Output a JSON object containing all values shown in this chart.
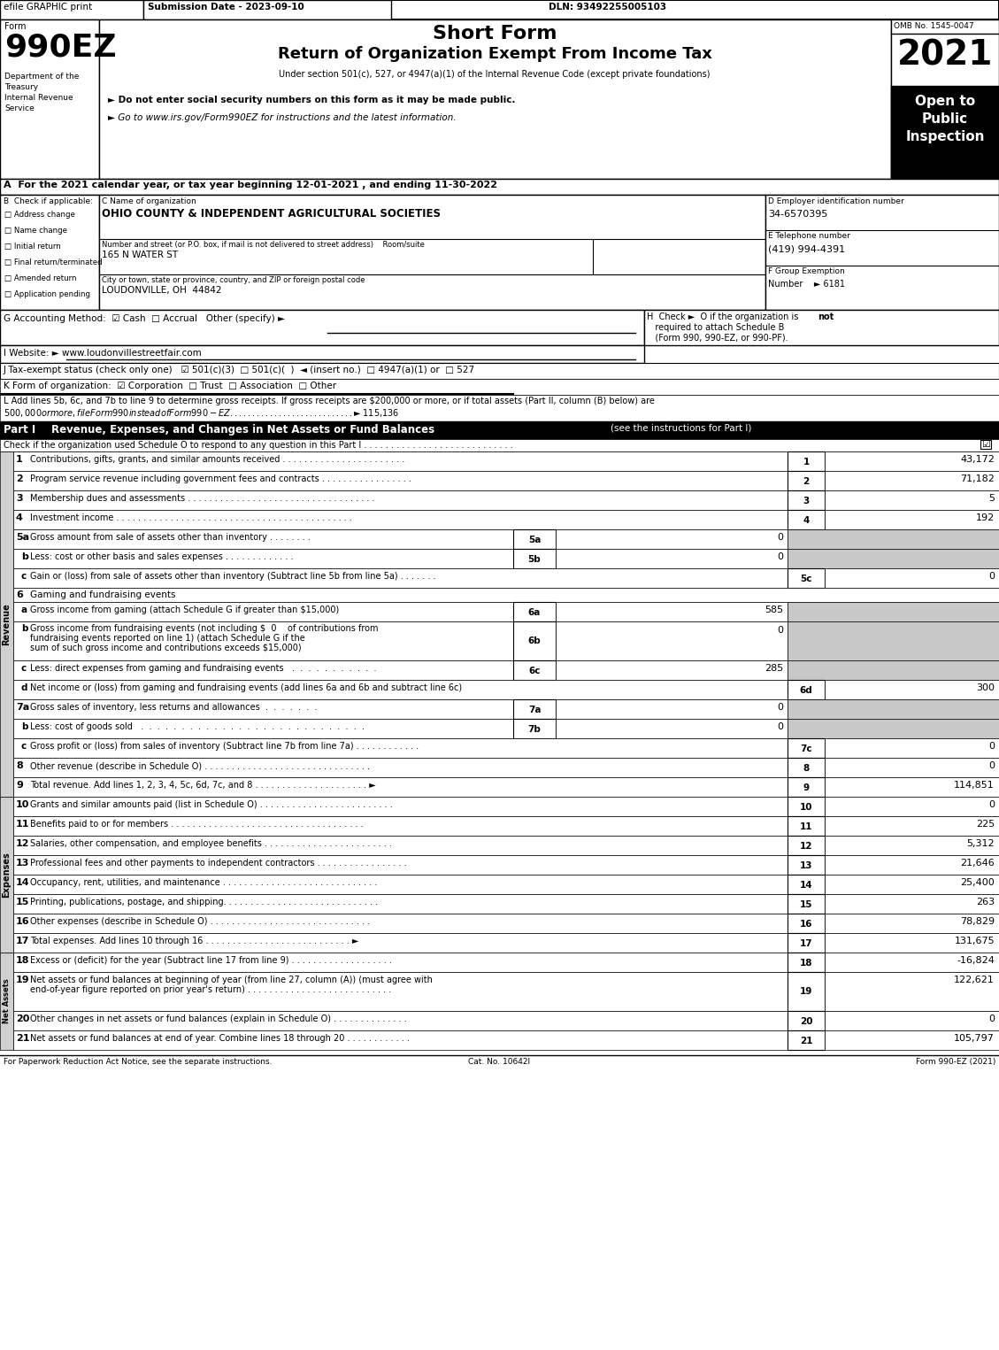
{
  "header_efile": "efile GRAPHIC print",
  "header_date": "Submission Date - 2023-09-10",
  "header_dln": "DLN: 93492255005103",
  "form_label": "Form",
  "form_number": "990EZ",
  "short_form": "Short Form",
  "main_title": "Return of Organization Exempt From Income Tax",
  "subtitle": "Under section 501(c), 527, or 4947(a)(1) of the Internal Revenue Code (except private foundations)",
  "bullet1": "► Do not enter social security numbers on this form as it may be made public.",
  "bullet2": "► Go to www.irs.gov/Form990EZ for instructions and the latest information.",
  "omb": "OMB No. 1545-0047",
  "year": "2021",
  "dept": [
    "Department of the",
    "Treasury",
    "Internal Revenue",
    "Service"
  ],
  "line_A": "A  For the 2021 calendar year, or tax year beginning 12-01-2021 , and ending 11-30-2022",
  "checkboxes_B": [
    "Address change",
    "Name change",
    "Initial return",
    "Final return/terminated",
    "Amended return",
    "Application pending"
  ],
  "org_name": "OHIO COUNTY & INDEPENDENT AGRICULTURAL SOCIETIES",
  "street": "165 N WATER ST",
  "city": "LOUDONVILLE, OH  44842",
  "ein": "34-6570395",
  "phone": "(419) 994-4391",
  "group_num": "► 6181",
  "line_G": "G Accounting Method:  ☑ Cash  □ Accrual   Other (specify) ►",
  "line_I": "I Website: ► www.loudonvillestreetfair.com",
  "line_J": "J Tax-exempt status (check only one)   ☑ 501(c)(3)  □ 501(c)(  )  ◄ (insert no.)  □ 4947(a)(1) or  □ 527",
  "line_K": "K Form of organization:  ☑ Corporation  □ Trust  □ Association  □ Other",
  "line_L1": "L Add lines 5b, 6c, and 7b to line 9 to determine gross receipts. If gross receipts are $200,000 or more, or if total assets (Part II, column (B) below) are",
  "line_L2": "$500,000 or more, file Form 990 instead of Form 990-EZ . . . . . . . . . . . . . . . . . . . . . . . . . . . . ► $ 115,136",
  "part1_header": "Revenue, Expenses, and Changes in Net Assets or Fund Balances",
  "part1_sub": "(see the instructions for Part I)",
  "part1_check_line": "Check if the organization used Schedule O to respond to any question in this Part I . . . . . . . . . . . . . . . . . . . . . . . . . . . .",
  "revenue_rows": [
    {
      "n": "1",
      "desc": "Contributions, gifts, grants, and similar amounts received . . . . . . . . . . . . . . . . . . . . . . .",
      "box": "1",
      "val": "43,172"
    },
    {
      "n": "2",
      "desc": "Program service revenue including government fees and contracts . . . . . . . . . . . . . . . . .",
      "box": "2",
      "val": "71,182"
    },
    {
      "n": "3",
      "desc": "Membership dues and assessments . . . . . . . . . . . . . . . . . . . . . . . . . . . . . . . . . . .",
      "box": "3",
      "val": "5"
    },
    {
      "n": "4",
      "desc": "Investment income . . . . . . . . . . . . . . . . . . . . . . . . . . . . . . . . . . . . . . . . . . . .",
      "box": "4",
      "val": "192"
    }
  ],
  "line5a_desc": "Gross amount from sale of assets other than inventory . . . . . . . .",
  "line5a_box": "5a",
  "line5a_val": "0",
  "line5b_desc": "Less: cost or other basis and sales expenses . . . . . . . . . . . . .",
  "line5b_box": "5b",
  "line5b_val": "0",
  "line5c_desc": "Gain or (loss) from sale of assets other than inventory (Subtract line 5b from line 5a) . . . . . . .",
  "line5c_box": "5c",
  "line5c_val": "0",
  "line6_desc": "Gaming and fundraising events",
  "line6a_desc": "Gross income from gaming (attach Schedule G if greater than $15,000)",
  "line6a_box": "6a",
  "line6a_val": "585",
  "line6b_desc1": "Gross income from fundraising events (not including $  0    of contributions from",
  "line6b_desc2": "fundraising events reported on line 1) (attach Schedule G if the",
  "line6b_desc3": "sum of such gross income and contributions exceeds $15,000)",
  "line6b_box": "6b",
  "line6b_val": "0",
  "line6c_desc": "Less: direct expenses from gaming and fundraising events   .  .  .  .  .  .  .  .  .  .  .",
  "line6c_box": "6c",
  "line6c_val": "285",
  "line6d_desc": "Net income or (loss) from gaming and fundraising events (add lines 6a and 6b and subtract line 6c)",
  "line6d_box": "6d",
  "line6d_val": "300",
  "line7a_desc": "Gross sales of inventory, less returns and allowances  .  .  .  .  .  .  .",
  "line7a_box": "7a",
  "line7a_val": "0",
  "line7b_desc": "Less: cost of goods sold   .  .  .  .  .  .  .  .  .  .  .  .  .  .  .  .  .  .  .  .  .  .  .  .  .  .  .  .",
  "line7b_box": "7b",
  "line7b_val": "0",
  "line7c_desc": "Gross profit or (loss) from sales of inventory (Subtract line 7b from line 7a) . . . . . . . . . . . .",
  "line7c_box": "7c",
  "line7c_val": "0",
  "line8_desc": "Other revenue (describe in Schedule O) . . . . . . . . . . . . . . . . . . . . . . . . . . . . . . .",
  "line8_box": "8",
  "line8_val": "0",
  "line9_desc": "Total revenue. Add lines 1, 2, 3, 4, 5c, 6d, 7c, and 8 . . . . . . . . . . . . . . . . . . . . . ►",
  "line9_box": "9",
  "line9_val": "114,851",
  "expense_rows": [
    {
      "n": "10",
      "desc": "Grants and similar amounts paid (list in Schedule O) . . . . . . . . . . . . . . . . . . . . . . . . .",
      "box": "10",
      "val": "0"
    },
    {
      "n": "11",
      "desc": "Benefits paid to or for members . . . . . . . . . . . . . . . . . . . . . . . . . . . . . . . . . . . .",
      "box": "11",
      "val": "225"
    },
    {
      "n": "12",
      "desc": "Salaries, other compensation, and employee benefits . . . . . . . . . . . . . . . . . . . . . . . .",
      "box": "12",
      "val": "5,312"
    },
    {
      "n": "13",
      "desc": "Professional fees and other payments to independent contractors . . . . . . . . . . . . . . . . .",
      "box": "13",
      "val": "21,646"
    },
    {
      "n": "14",
      "desc": "Occupancy, rent, utilities, and maintenance . . . . . . . . . . . . . . . . . . . . . . . . . . . . .",
      "box": "14",
      "val": "25,400"
    },
    {
      "n": "15",
      "desc": "Printing, publications, postage, and shipping. . . . . . . . . . . . . . . . . . . . . . . . . . . . .",
      "box": "15",
      "val": "263"
    },
    {
      "n": "16",
      "desc": "Other expenses (describe in Schedule O) . . . . . . . . . . . . . . . . . . . . . . . . . . . . . .",
      "box": "16",
      "val": "78,829"
    },
    {
      "n": "17",
      "desc": "Total expenses. Add lines 10 through 16 . . . . . . . . . . . . . . . . . . . . . . . . . . . ►",
      "box": "17",
      "val": "131,675"
    }
  ],
  "na_row18_desc": "Excess or (deficit) for the year (Subtract line 17 from line 9) . . . . . . . . . . . . . . . . . . .",
  "na_row18_box": "18",
  "na_row18_val": "-16,824",
  "na_row19_desc1": "Net assets or fund balances at beginning of year (from line 27, column (A)) (must agree with",
  "na_row19_desc2": "end-of-year figure reported on prior year's return) . . . . . . . . . . . . . . . . . . . . . . . . . . .",
  "na_row19_box": "19",
  "na_row19_val": "122,621",
  "na_row20_desc": "Other changes in net assets or fund balances (explain in Schedule O) . . . . . . . . . . . . . .",
  "na_row20_box": "20",
  "na_row20_val": "0",
  "na_row21_desc": "Net assets or fund balances at end of year. Combine lines 18 through 20 . . . . . . . . . . . .",
  "na_row21_box": "21",
  "na_row21_val": "105,797",
  "footer_left": "For Paperwork Reduction Act Notice, see the separate instructions.",
  "footer_cat": "Cat. No. 10642I",
  "footer_right": "Form 990-EZ (2021)",
  "gray_color": "#c8c8c8",
  "side_label_color": "#d0d0d0"
}
